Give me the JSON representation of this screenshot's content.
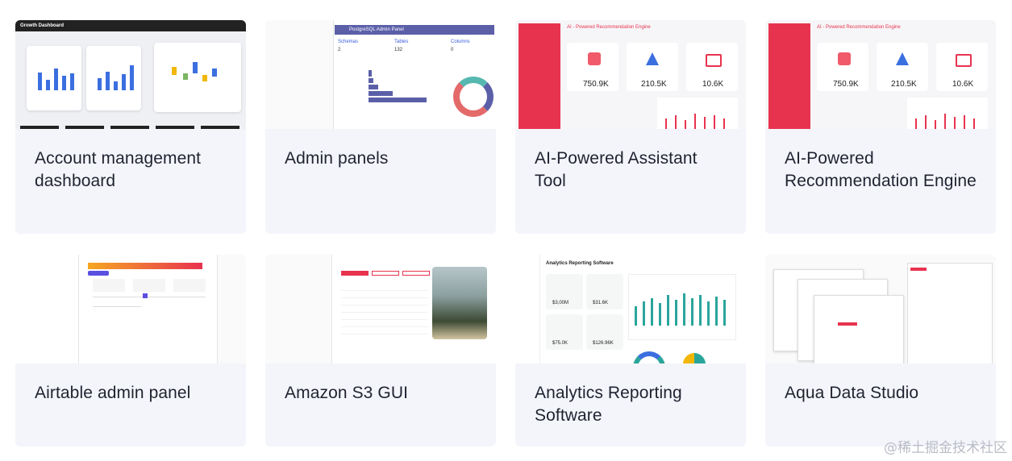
{
  "cards": [
    {
      "title": "Account management dashboard",
      "thumb_heading": "Growth Dashboard"
    },
    {
      "title": "Admin panels",
      "thumb_heading": "PostgreSQL Admin Panel",
      "thumb_stats": [
        {
          "label": "Schemas",
          "value": "2"
        },
        {
          "label": "Tables",
          "value": "132"
        },
        {
          "label": "Columns",
          "value": "0"
        }
      ]
    },
    {
      "title": "AI-Powered Assistant Tool",
      "thumb_heading": "AI - Powered Recommendation Engine",
      "thumb_stats": [
        "750.9K",
        "210.5K",
        "10.6K"
      ]
    },
    {
      "title": "AI-Powered Recommendation Engine",
      "thumb_heading": "AI - Powered Recommendation Engine",
      "thumb_stats": [
        "750.9K",
        "210.5K",
        "10.6K"
      ]
    },
    {
      "title": "Airtable admin panel"
    },
    {
      "title": "Amazon S3 GUI"
    },
    {
      "title": "Analytics Reporting Software",
      "thumb_heading": "Analytics Reporting Software",
      "thumb_stats": [
        "$3,00M",
        "$31.6K",
        "$75.0K",
        "$126.96K"
      ]
    },
    {
      "title": "Aqua Data Studio"
    }
  ],
  "watermark": "@稀土掘金技术社区",
  "colors": {
    "card_bg": "#f4f5fb",
    "accent_red": "#e8334f",
    "accent_blue": "#3b5bdb",
    "accent_purple": "#5b5fa8",
    "accent_teal": "#2aa59c"
  }
}
